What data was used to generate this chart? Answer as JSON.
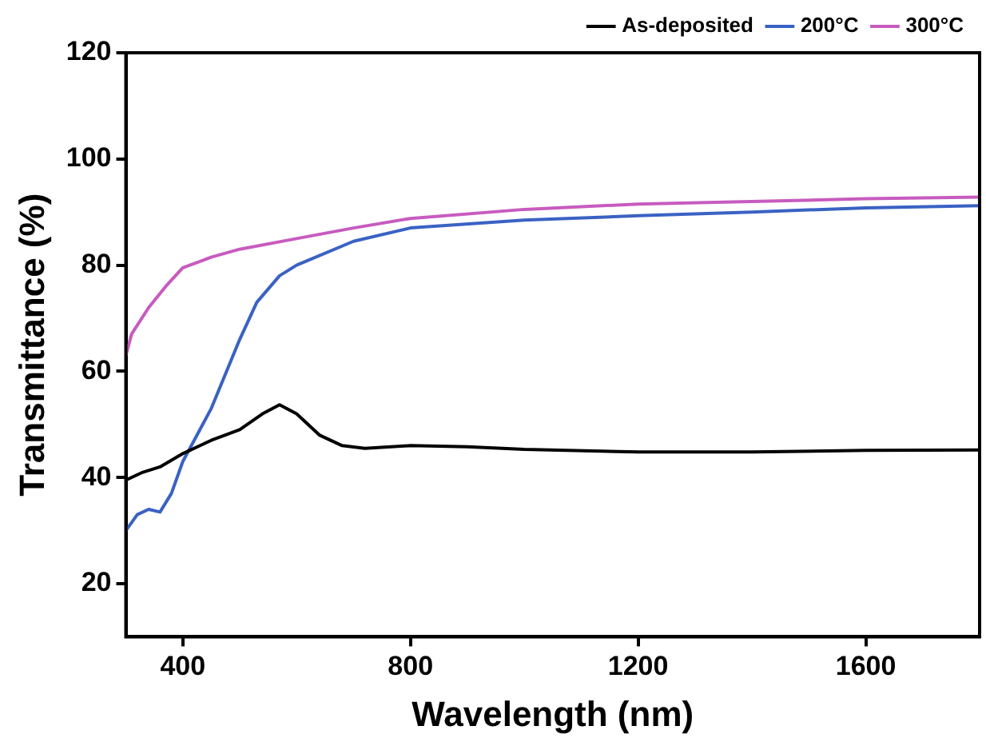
{
  "chart_data": {
    "type": "line",
    "xlabel": "Wavelength (nm)",
    "ylabel": "Transmittance (%)",
    "xlim": [
      300,
      1800
    ],
    "xticks": [
      400,
      800,
      1200,
      1600
    ],
    "ylim": [
      10,
      120
    ],
    "yticks": [
      20,
      40,
      60,
      80,
      100,
      120
    ],
    "grid": false,
    "legend": "top right",
    "marker": "none",
    "line_style": "solid",
    "series": [
      {
        "name": "As-deposited",
        "color": "#000000",
        "x": [
          300,
          330,
          360,
          400,
          450,
          500,
          540,
          570,
          600,
          640,
          680,
          720,
          800,
          900,
          1000,
          1200,
          1400,
          1600,
          1800
        ],
        "values": [
          39.5,
          41,
          42,
          44.5,
          47,
          49,
          52,
          53.7,
          52,
          48,
          46,
          45.5,
          46,
          45.8,
          45.3,
          44.8,
          44.8,
          45.1,
          45.2
        ]
      },
      {
        "name": "200°C",
        "color": "#3a62c4",
        "x": [
          300,
          320,
          340,
          360,
          380,
          400,
          450,
          500,
          530,
          570,
          600,
          700,
          800,
          1000,
          1200,
          1400,
          1600,
          1800
        ],
        "values": [
          30,
          33,
          34,
          33.5,
          37,
          43,
          53,
          66,
          73,
          78,
          80,
          84.5,
          87,
          88.5,
          89.3,
          90,
          90.8,
          91.2
        ]
      },
      {
        "name": "300°C",
        "color": "#c75bbf",
        "x": [
          300,
          310,
          340,
          370,
          400,
          450,
          500,
          600,
          700,
          800,
          1000,
          1200,
          1400,
          1600,
          1800
        ],
        "values": [
          63,
          67,
          72,
          76,
          79.5,
          81.5,
          83,
          85,
          87,
          88.8,
          90.5,
          91.5,
          92,
          92.5,
          92.8
        ]
      }
    ]
  }
}
